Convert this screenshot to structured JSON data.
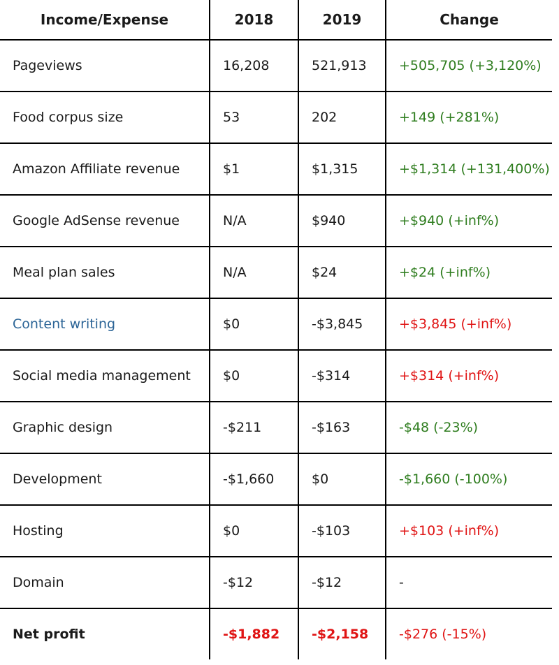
{
  "headers": [
    "Income/Expense",
    "2018",
    "2019",
    "Change"
  ],
  "colors": {
    "positive": "#2f7d1f",
    "negative": "#e01414",
    "link": "#2b6496"
  },
  "rows": [
    {
      "label": "Pageviews",
      "y2018": "16,208",
      "y2019": "521,913",
      "change": "+505,705 (+3,120%)",
      "tone": "pos"
    },
    {
      "label": "Food corpus size",
      "y2018": "53",
      "y2019": "202",
      "change": "+149 (+281%)",
      "tone": "pos"
    },
    {
      "label": "Amazon Affiliate revenue",
      "y2018": "$1",
      "y2019": "$1,315",
      "change": "+$1,314 (+131,400%)",
      "tone": "pos"
    },
    {
      "label": "Google AdSense revenue",
      "y2018": "N/A",
      "y2019": "$940",
      "change": "+$940 (+inf%)",
      "tone": "pos"
    },
    {
      "label": "Meal plan sales",
      "y2018": "N/A",
      "y2019": "$24",
      "change": "+$24 (+inf%)",
      "tone": "pos"
    },
    {
      "label": "Content writing",
      "y2018": "$0",
      "y2019": "-$3,845",
      "change": "+$3,845 (+inf%)",
      "tone": "neg"
    },
    {
      "label": "Social media management",
      "y2018": "$0",
      "y2019": "-$314",
      "change": "+$314 (+inf%)",
      "tone": "neg"
    },
    {
      "label": "Graphic design",
      "y2018": "-$211",
      "y2019": "-$163",
      "change": "-$48 (-23%)",
      "tone": "pos"
    },
    {
      "label": "Development",
      "y2018": "-$1,660",
      "y2019": "$0",
      "change": "-$1,660 (-100%)",
      "tone": "pos"
    },
    {
      "label": "Hosting",
      "y2018": "$0",
      "y2019": "-$103",
      "change": "+$103 (+inf%)",
      "tone": "neg"
    },
    {
      "label": "Domain",
      "y2018": "-$12",
      "y2019": "-$12",
      "change": "-",
      "tone": "neutral"
    }
  ],
  "total": {
    "label": "Net profit",
    "y2018": "-$1,882",
    "y2019": "-$2,158",
    "change": "-$276 (-15%)",
    "tone": "neg"
  }
}
